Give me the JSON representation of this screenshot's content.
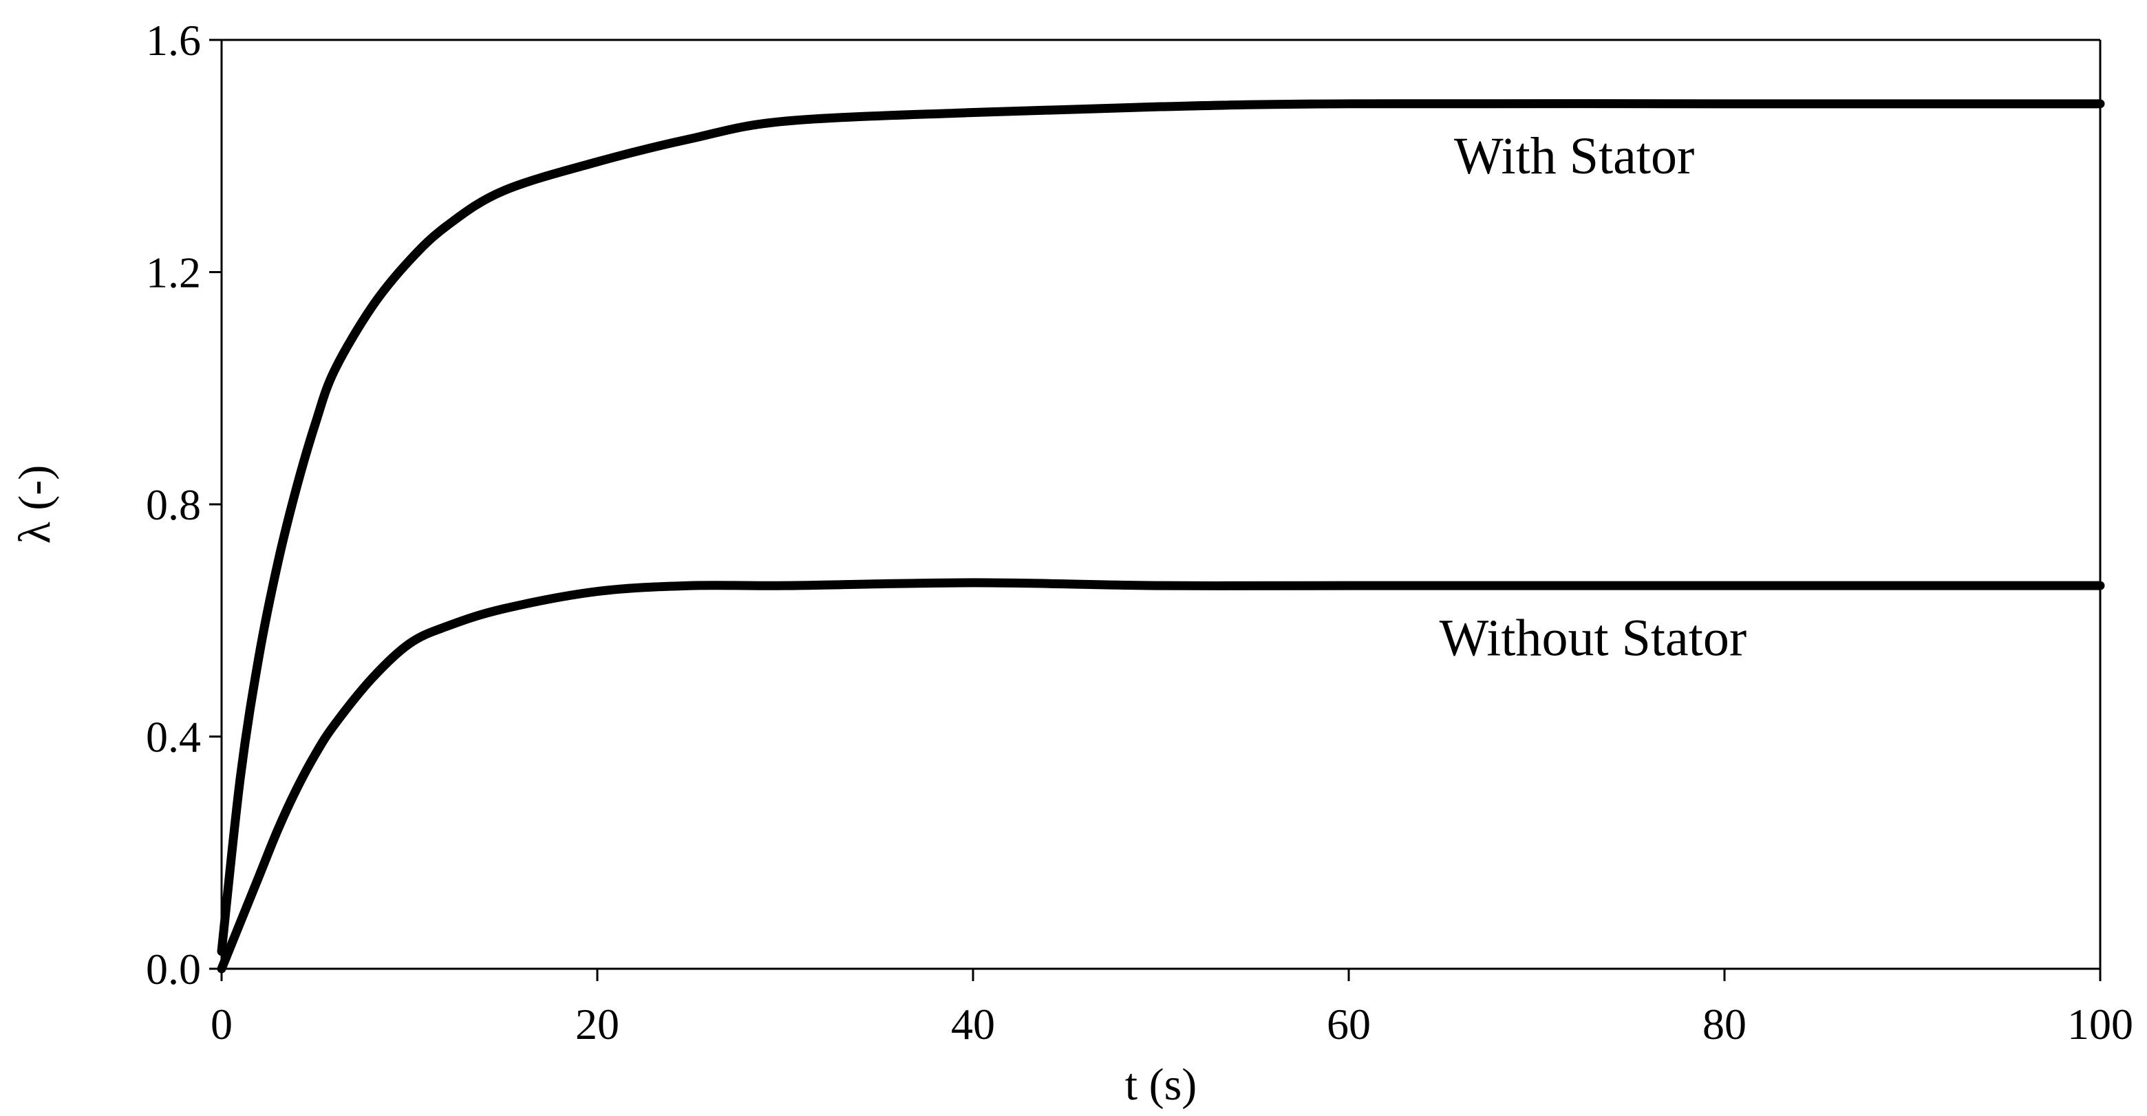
{
  "chart_data": {
    "type": "line",
    "title": "",
    "xlabel": "t (s)",
    "ylabel": "λ (-)",
    "xlim": [
      0,
      100
    ],
    "ylim": [
      0.0,
      1.6
    ],
    "x_ticks": [
      0,
      20,
      40,
      60,
      80,
      100
    ],
    "x_tick_labels": [
      "0",
      "20",
      "40",
      "60",
      "80",
      "100"
    ],
    "y_ticks": [
      0.0,
      0.4,
      0.8,
      1.2,
      1.6
    ],
    "y_tick_labels": [
      "0.0",
      "0.4",
      "0.8",
      "1.2",
      "1.6"
    ],
    "grid": false,
    "legend": "none",
    "series": [
      {
        "name": "With Stator",
        "x": [
          0,
          1,
          2,
          3,
          4,
          5,
          6,
          8,
          10,
          12,
          15,
          20,
          25,
          30,
          40,
          50,
          60,
          80,
          100
        ],
        "y": [
          0.03,
          0.33,
          0.54,
          0.7,
          0.83,
          0.94,
          1.03,
          1.14,
          1.22,
          1.28,
          1.34,
          1.39,
          1.43,
          1.46,
          1.475,
          1.485,
          1.49,
          1.49,
          1.49
        ]
      },
      {
        "name": "Without Stator",
        "x": [
          0,
          1,
          2,
          3,
          4,
          5,
          6,
          8,
          10,
          12,
          15,
          20,
          25,
          30,
          40,
          50,
          60,
          80,
          100
        ],
        "y": [
          0.0,
          0.08,
          0.16,
          0.24,
          0.31,
          0.37,
          0.42,
          0.5,
          0.56,
          0.59,
          0.62,
          0.65,
          0.66,
          0.66,
          0.665,
          0.66,
          0.66,
          0.66,
          0.66
        ]
      }
    ],
    "annotations": [
      {
        "text": "With Stator",
        "x": 72,
        "y": 1.37
      },
      {
        "text": "Without Stator",
        "x": 73,
        "y": 0.54
      }
    ]
  }
}
